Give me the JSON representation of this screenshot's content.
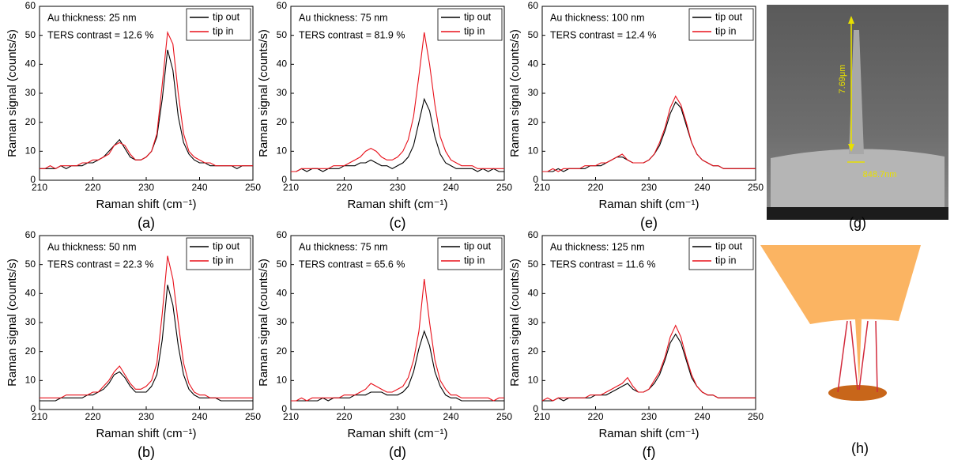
{
  "chart_data": [
    {
      "type": "line",
      "panel_label": "(a)",
      "annotations": [
        "Au thickness: 25 nm",
        "TERS contrast = 12.6 %"
      ],
      "x_label": "Raman shift (cm⁻¹)",
      "y_label": "Raman signal (counts/s)",
      "x": [
        210,
        211,
        212,
        213,
        214,
        215,
        216,
        217,
        218,
        219,
        220,
        221,
        222,
        223,
        224,
        225,
        226,
        227,
        228,
        229,
        230,
        231,
        232,
        233,
        234,
        235,
        236,
        237,
        238,
        239,
        240,
        241,
        242,
        243,
        244,
        245,
        246,
        247,
        248,
        249,
        250
      ],
      "series": [
        {
          "name": "tip out",
          "color": "#000000",
          "values": [
            4,
            4,
            4,
            4,
            5,
            4,
            5,
            5,
            5,
            6,
            6,
            7,
            8,
            10,
            12,
            14,
            11,
            8,
            7,
            7,
            8,
            10,
            15,
            28,
            45,
            38,
            22,
            13,
            9,
            7,
            6,
            6,
            5,
            5,
            5,
            5,
            5,
            4,
            5,
            5,
            5
          ]
        },
        {
          "name": "tip in",
          "color": "#e8101a",
          "values": [
            4,
            4,
            5,
            4,
            5,
            5,
            5,
            5,
            6,
            6,
            7,
            7,
            8,
            9,
            12,
            13,
            12,
            9,
            7,
            7,
            8,
            10,
            16,
            33,
            51,
            47,
            30,
            16,
            10,
            8,
            7,
            6,
            6,
            5,
            5,
            5,
            5,
            5,
            5,
            5,
            5
          ]
        }
      ],
      "xlim": [
        210,
        250
      ],
      "xticks": [
        210,
        220,
        230,
        240,
        250
      ],
      "ylim": [
        0,
        60
      ],
      "yticks": [
        0,
        10,
        20,
        30,
        40,
        50,
        60
      ],
      "grid": false,
      "legend": "upper right"
    },
    {
      "type": "line",
      "panel_label": "(b)",
      "annotations": [
        "Au thickness: 50 nm",
        "TERS contrast = 22.3 %"
      ],
      "x_label": "Raman shift (cm⁻¹)",
      "y_label": "Raman signal (counts/s)",
      "x": [
        210,
        211,
        212,
        213,
        214,
        215,
        216,
        217,
        218,
        219,
        220,
        221,
        222,
        223,
        224,
        225,
        226,
        227,
        228,
        229,
        230,
        231,
        232,
        233,
        234,
        235,
        236,
        237,
        238,
        239,
        240,
        241,
        242,
        243,
        244,
        245,
        246,
        247,
        248,
        249,
        250
      ],
      "series": [
        {
          "name": "tip out",
          "color": "#000000",
          "values": [
            3,
            3,
            3,
            3,
            4,
            4,
            4,
            4,
            4,
            5,
            5,
            6,
            7,
            9,
            12,
            13,
            11,
            8,
            6,
            6,
            6,
            8,
            12,
            24,
            43,
            36,
            22,
            12,
            7,
            5,
            4,
            4,
            4,
            4,
            3,
            3,
            3,
            3,
            3,
            3,
            3
          ]
        },
        {
          "name": "tip in",
          "color": "#e8101a",
          "values": [
            4,
            4,
            4,
            4,
            4,
            5,
            5,
            5,
            5,
            5,
            6,
            6,
            8,
            10,
            13,
            15,
            12,
            9,
            7,
            7,
            8,
            10,
            16,
            33,
            53,
            45,
            30,
            16,
            9,
            6,
            5,
            5,
            4,
            4,
            4,
            4,
            4,
            4,
            4,
            4,
            4
          ]
        }
      ],
      "xlim": [
        210,
        250
      ],
      "xticks": [
        210,
        220,
        230,
        240,
        250
      ],
      "ylim": [
        0,
        60
      ],
      "yticks": [
        0,
        10,
        20,
        30,
        40,
        50,
        60
      ],
      "grid": false,
      "legend": "upper right"
    },
    {
      "type": "line",
      "panel_label": "(c)",
      "annotations": [
        "Au thickness: 75 nm",
        "TERS contrast = 81.9 %"
      ],
      "x_label": "Raman shift (cm⁻¹)",
      "y_label": "Raman signal (counts/s)",
      "x": [
        210,
        211,
        212,
        213,
        214,
        215,
        216,
        217,
        218,
        219,
        220,
        221,
        222,
        223,
        224,
        225,
        226,
        227,
        228,
        229,
        230,
        231,
        232,
        233,
        234,
        235,
        236,
        237,
        238,
        239,
        240,
        241,
        242,
        243,
        244,
        245,
        246,
        247,
        248,
        249,
        250
      ],
      "series": [
        {
          "name": "tip out",
          "color": "#000000",
          "values": [
            3,
            3,
            4,
            3,
            4,
            4,
            3,
            4,
            4,
            4,
            5,
            5,
            5,
            6,
            6,
            7,
            6,
            5,
            5,
            4,
            5,
            6,
            8,
            12,
            20,
            28,
            24,
            15,
            9,
            6,
            5,
            4,
            4,
            4,
            4,
            3,
            4,
            3,
            4,
            3,
            3
          ]
        },
        {
          "name": "tip in",
          "color": "#e8101a",
          "values": [
            3,
            3,
            4,
            4,
            4,
            4,
            4,
            4,
            5,
            5,
            5,
            6,
            7,
            8,
            10,
            11,
            10,
            8,
            7,
            7,
            8,
            10,
            14,
            22,
            36,
            51,
            40,
            26,
            15,
            10,
            7,
            6,
            5,
            5,
            5,
            4,
            4,
            4,
            4,
            4,
            4
          ]
        }
      ],
      "xlim": [
        210,
        250
      ],
      "xticks": [
        210,
        220,
        230,
        240,
        250
      ],
      "ylim": [
        0,
        60
      ],
      "yticks": [
        0,
        10,
        20,
        30,
        40,
        50,
        60
      ],
      "grid": false,
      "legend": "upper right"
    },
    {
      "type": "line",
      "panel_label": "(d)",
      "annotations": [
        "Au thickness: 75 nm",
        "TERS contrast = 65.6 %"
      ],
      "x_label": "Raman shift (cm⁻¹)",
      "y_label": "Raman signal (counts/s)",
      "x": [
        210,
        211,
        212,
        213,
        214,
        215,
        216,
        217,
        218,
        219,
        220,
        221,
        222,
        223,
        224,
        225,
        226,
        227,
        228,
        229,
        230,
        231,
        232,
        233,
        234,
        235,
        236,
        237,
        238,
        239,
        240,
        241,
        242,
        243,
        244,
        245,
        246,
        247,
        248,
        249,
        250
      ],
      "series": [
        {
          "name": "tip out",
          "color": "#000000",
          "values": [
            3,
            3,
            3,
            3,
            3,
            3,
            4,
            3,
            4,
            4,
            4,
            4,
            5,
            5,
            5,
            6,
            6,
            6,
            5,
            5,
            5,
            6,
            8,
            13,
            21,
            27,
            22,
            13,
            8,
            5,
            4,
            4,
            3,
            3,
            3,
            3,
            3,
            3,
            3,
            3,
            3
          ]
        },
        {
          "name": "tip in",
          "color": "#e8101a",
          "values": [
            3,
            3,
            4,
            3,
            4,
            4,
            4,
            4,
            4,
            4,
            5,
            5,
            5,
            6,
            7,
            9,
            8,
            7,
            6,
            6,
            7,
            8,
            11,
            17,
            27,
            45,
            30,
            17,
            10,
            7,
            5,
            5,
            4,
            4,
            4,
            4,
            4,
            4,
            3,
            4,
            4
          ]
        }
      ],
      "xlim": [
        210,
        250
      ],
      "xticks": [
        210,
        220,
        230,
        240,
        250
      ],
      "ylim": [
        0,
        60
      ],
      "yticks": [
        0,
        10,
        20,
        30,
        40,
        50,
        60
      ],
      "grid": false,
      "legend": "upper right"
    },
    {
      "type": "line",
      "panel_label": "(e)",
      "annotations": [
        "Au thickness: 100 nm",
        "TERS contrast = 12.4 %"
      ],
      "x_label": "Raman shift (cm⁻¹)",
      "y_label": "Raman signal (counts/s)",
      "x": [
        210,
        211,
        212,
        213,
        214,
        215,
        216,
        217,
        218,
        219,
        220,
        221,
        222,
        223,
        224,
        225,
        226,
        227,
        228,
        229,
        230,
        231,
        232,
        233,
        234,
        235,
        236,
        237,
        238,
        239,
        240,
        241,
        242,
        243,
        244,
        245,
        246,
        247,
        248,
        249,
        250
      ],
      "series": [
        {
          "name": "tip out",
          "color": "#000000",
          "values": [
            3,
            3,
            3,
            4,
            3,
            4,
            4,
            4,
            4,
            5,
            5,
            5,
            6,
            7,
            8,
            8,
            7,
            6,
            6,
            6,
            7,
            9,
            12,
            17,
            23,
            27,
            25,
            19,
            13,
            9,
            7,
            6,
            5,
            5,
            4,
            4,
            4,
            4,
            4,
            4,
            4
          ]
        },
        {
          "name": "tip in",
          "color": "#e8101a",
          "values": [
            3,
            3,
            4,
            3,
            4,
            4,
            4,
            4,
            5,
            5,
            5,
            6,
            6,
            7,
            8,
            9,
            7,
            6,
            6,
            6,
            7,
            9,
            13,
            18,
            25,
            29,
            26,
            20,
            13,
            9,
            7,
            6,
            5,
            5,
            4,
            4,
            4,
            4,
            4,
            4,
            4
          ]
        }
      ],
      "xlim": [
        210,
        250
      ],
      "xticks": [
        210,
        220,
        230,
        240,
        250
      ],
      "ylim": [
        0,
        60
      ],
      "yticks": [
        0,
        10,
        20,
        30,
        40,
        50,
        60
      ],
      "grid": false,
      "legend": "upper right"
    },
    {
      "type": "line",
      "panel_label": "(f)",
      "annotations": [
        "Au thickness: 125 nm",
        "TERS contrast = 11.6 %"
      ],
      "x_label": "Raman shift (cm⁻¹)",
      "y_label": "Raman signal (counts/s)",
      "x": [
        210,
        211,
        212,
        213,
        214,
        215,
        216,
        217,
        218,
        219,
        220,
        221,
        222,
        223,
        224,
        225,
        226,
        227,
        228,
        229,
        230,
        231,
        232,
        233,
        234,
        235,
        236,
        237,
        238,
        239,
        240,
        241,
        242,
        243,
        244,
        245,
        246,
        247,
        248,
        249,
        250
      ],
      "series": [
        {
          "name": "tip out",
          "color": "#000000",
          "values": [
            3,
            3,
            3,
            4,
            3,
            4,
            4,
            4,
            4,
            4,
            5,
            5,
            5,
            6,
            7,
            8,
            9,
            7,
            6,
            6,
            7,
            9,
            12,
            17,
            23,
            26,
            23,
            17,
            11,
            8,
            6,
            5,
            5,
            4,
            4,
            4,
            4,
            4,
            4,
            4,
            4
          ]
        },
        {
          "name": "tip in",
          "color": "#e8101a",
          "values": [
            3,
            4,
            3,
            4,
            4,
            4,
            4,
            4,
            4,
            5,
            5,
            5,
            6,
            7,
            8,
            9,
            11,
            8,
            6,
            6,
            7,
            10,
            13,
            18,
            25,
            29,
            25,
            18,
            12,
            8,
            6,
            5,
            5,
            4,
            4,
            4,
            4,
            4,
            4,
            4,
            4
          ]
        }
      ],
      "xlim": [
        210,
        250
      ],
      "xticks": [
        210,
        220,
        230,
        240,
        250
      ],
      "ylim": [
        0,
        60
      ],
      "yticks": [
        0,
        10,
        20,
        30,
        40,
        50,
        60
      ],
      "grid": false,
      "legend": "upper right"
    }
  ],
  "images": [
    {
      "label": "(g)",
      "height_label": "7.69μm",
      "width_label": "848.7nm"
    },
    {
      "label": "(h)"
    }
  ]
}
